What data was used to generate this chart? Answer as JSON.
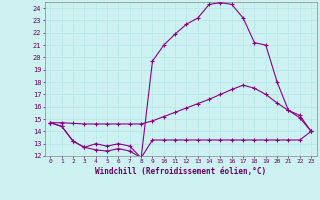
{
  "xlabel": "Windchill (Refroidissement éolien,°C)",
  "bg_color": "#cdf1f1",
  "grid_color": "#aadddd",
  "line_color": "#880088",
  "xlim": [
    -0.5,
    23.5
  ],
  "ylim": [
    12,
    24.5
  ],
  "xticks": [
    0,
    1,
    2,
    3,
    4,
    5,
    6,
    7,
    8,
    9,
    10,
    11,
    12,
    13,
    14,
    15,
    16,
    17,
    18,
    19,
    20,
    21,
    22,
    23
  ],
  "yticks": [
    12,
    13,
    14,
    15,
    16,
    17,
    18,
    19,
    20,
    21,
    22,
    23,
    24
  ],
  "line1_x": [
    0,
    1,
    2,
    3,
    4,
    5,
    6,
    7,
    8,
    9,
    10,
    11,
    12,
    13,
    14,
    15,
    16,
    17,
    18,
    19,
    20,
    21,
    22,
    23
  ],
  "line1_y": [
    14.7,
    14.4,
    13.2,
    12.7,
    12.5,
    12.4,
    12.6,
    12.4,
    11.85,
    13.3,
    13.3,
    13.3,
    13.3,
    13.3,
    13.3,
    13.3,
    13.3,
    13.3,
    13.3,
    13.3,
    13.3,
    13.3,
    13.3,
    14.0
  ],
  "line2_x": [
    0,
    1,
    2,
    3,
    4,
    5,
    6,
    7,
    8,
    9,
    10,
    11,
    12,
    13,
    14,
    15,
    16,
    17,
    18,
    19,
    20,
    21,
    22,
    23
  ],
  "line2_y": [
    14.7,
    14.7,
    14.65,
    14.6,
    14.6,
    14.6,
    14.6,
    14.6,
    14.6,
    14.85,
    15.2,
    15.55,
    15.9,
    16.25,
    16.6,
    17.0,
    17.4,
    17.75,
    17.5,
    17.0,
    16.3,
    15.7,
    15.1,
    14.0
  ],
  "line3_x": [
    0,
    1,
    2,
    3,
    4,
    5,
    6,
    7,
    8,
    9,
    10,
    11,
    12,
    13,
    14,
    15,
    16,
    17,
    18,
    19,
    20,
    21,
    22,
    23
  ],
  "line3_y": [
    14.7,
    14.4,
    13.2,
    12.7,
    13.0,
    12.8,
    13.0,
    12.8,
    11.85,
    19.7,
    21.0,
    21.9,
    22.7,
    23.2,
    24.3,
    24.45,
    24.3,
    23.2,
    21.2,
    21.0,
    18.0,
    15.7,
    15.3,
    14.0
  ]
}
